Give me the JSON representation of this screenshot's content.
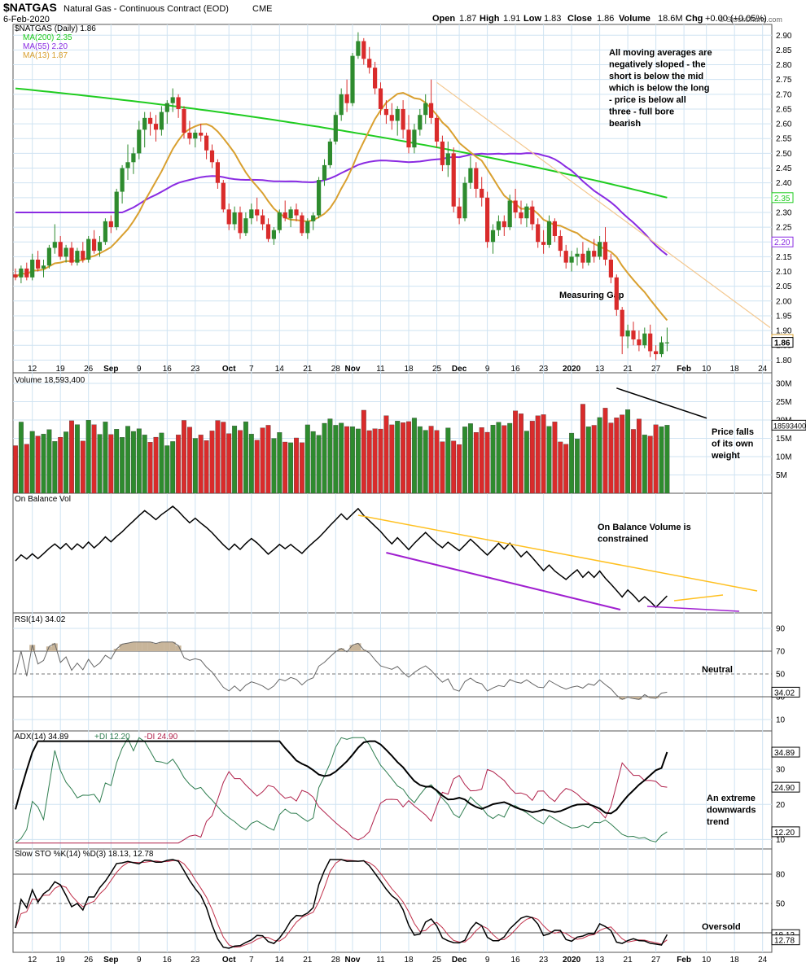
{
  "header": {
    "symbol": "$NATGAS",
    "name": "Natural Gas - Continuous Contract (EOD)",
    "exchange": "CME",
    "date": "6-Feb-2020",
    "open_label": "Open",
    "open": "1.87",
    "high_label": "High",
    "high": "1.91",
    "low_label": "Low",
    "low": "1.83",
    "close_label": "Close",
    "close": "1.86",
    "volume_label": "Volume",
    "volume": "18.6M",
    "chg_label": "Chg",
    "chg": "+0.00 (+0.05%)",
    "watermark": "© StockCharts.com"
  },
  "colors": {
    "up": "#2e8b2e",
    "down": "#d92b2b",
    "ma200": "#20cc20",
    "ma55": "#8a2be2",
    "ma13": "#d9a030",
    "grid": "#cfe3f2",
    "obv_upper": "#ffc020",
    "obv_lower": "#a020d0",
    "rsi_fill": "#c8b59a",
    "adx": "#000000",
    "pdi": "#2e7d4f",
    "mdi": "#b0204a",
    "sto_k": "#000000",
    "sto_d": "#c0304a"
  },
  "x_axis": {
    "ticks": [
      {
        "i": 3,
        "label": "12"
      },
      {
        "i": 8,
        "label": "19"
      },
      {
        "i": 13,
        "label": "26"
      },
      {
        "i": 17,
        "label": "Sep",
        "bold": true
      },
      {
        "i": 22,
        "label": "9"
      },
      {
        "i": 27,
        "label": "16"
      },
      {
        "i": 32,
        "label": "23"
      },
      {
        "i": 38,
        "label": "Oct",
        "bold": true
      },
      {
        "i": 42,
        "label": "7"
      },
      {
        "i": 47,
        "label": "14"
      },
      {
        "i": 52,
        "label": "21"
      },
      {
        "i": 57,
        "label": "28"
      },
      {
        "i": 60,
        "label": "Nov",
        "bold": true
      },
      {
        "i": 65,
        "label": "11"
      },
      {
        "i": 70,
        "label": "18"
      },
      {
        "i": 75,
        "label": "25"
      },
      {
        "i": 79,
        "label": "Dec",
        "bold": true
      },
      {
        "i": 84,
        "label": "9"
      },
      {
        "i": 89,
        "label": "16"
      },
      {
        "i": 94,
        "label": "23"
      },
      {
        "i": 99,
        "label": "2020",
        "bold": true
      },
      {
        "i": 104,
        "label": "13"
      },
      {
        "i": 109,
        "label": "21"
      },
      {
        "i": 114,
        "label": "27"
      },
      {
        "i": 119,
        "label": "Feb",
        "bold": true
      },
      {
        "i": 123,
        "label": "10"
      },
      {
        "i": 128,
        "label": "18"
      },
      {
        "i": 133,
        "label": "24"
      }
    ]
  },
  "price_panel": {
    "legend": [
      {
        "text": "$NATGAS (Daily) 1.86",
        "color": "#000000"
      },
      {
        "text": "MA(200) 2.35",
        "color": "#20cc20"
      },
      {
        "text": "MA(55) 2.20",
        "color": "#8a2be2"
      },
      {
        "text": "MA(13) 1.87",
        "color": "#d9a030"
      }
    ],
    "y_labels": [
      "2.90",
      "2.85",
      "2.80",
      "2.75",
      "2.70",
      "2.65",
      "2.60",
      "2.55",
      "2.50",
      "2.45",
      "2.40",
      "2.35",
      "2.30",
      "2.25",
      "2.20",
      "2.15",
      "2.10",
      "2.05",
      "2.00",
      "1.95",
      "1.90",
      "1.85",
      "1.80"
    ],
    "last_labels": [
      {
        "text": "2.35",
        "value": 2.35,
        "color": "#20cc20"
      },
      {
        "text": "2.20",
        "value": 2.2,
        "color": "#8a2be2"
      },
      {
        "text": "1.87",
        "value": 1.87,
        "color": "#d9a030"
      },
      {
        "text": "1.86",
        "value": 1.86,
        "color": "#000000"
      }
    ],
    "annotation_ma": "All moving averages are negatively sloped - the short is below the mid which is below the long - price is below all three - full bore bearish",
    "annotation_gap": "Measuring Gap"
  },
  "volume_panel": {
    "legend": "Volume 18,593,400",
    "y_labels": [
      "30M",
      "25M",
      "20M",
      "15M",
      "10M",
      "5M"
    ],
    "last_label": "18593400",
    "annotation": "Price falls of its own weight"
  },
  "obv_panel": {
    "legend": "On Balance Vol",
    "annotation": "On Balance Volume is constrained"
  },
  "rsi_panel": {
    "legend": "RSI(14) 34.02",
    "y_labels": [
      "90",
      "70",
      "50",
      "30",
      "10"
    ],
    "last_label": "34.02",
    "annotation": "Neutral"
  },
  "adx_panel": {
    "legend_adx": "ADX(14) 34.89",
    "legend_pdi": "+DI 12.20",
    "legend_mdi": "-DI 24.90",
    "y_labels": [
      "30",
      "20",
      "10"
    ],
    "last_labels": [
      {
        "text": "34.89",
        "value": 34.89
      },
      {
        "text": "24.90",
        "value": 24.9
      },
      {
        "text": "12.20",
        "value": 12.2
      }
    ],
    "annotation": "An extreme downwards trend"
  },
  "sto_panel": {
    "legend": "Slow STO %K(14) %D(3) 18.13, 12.78",
    "y_labels": [
      "80",
      "50",
      "20"
    ],
    "last_labels": [
      {
        "text": "18.13",
        "value": 18.13
      },
      {
        "text": "12.78",
        "value": 12.78
      }
    ],
    "annotation": "Oversold"
  },
  "chart_data": {
    "type": "candlestick",
    "title": "$NATGAS (Daily)",
    "candles_ohlc_approx": [
      [
        2.09,
        2.11,
        2.07,
        2.08
      ],
      [
        2.08,
        2.12,
        2.06,
        2.11
      ],
      [
        2.11,
        2.13,
        2.07,
        2.08
      ],
      [
        2.08,
        2.16,
        2.07,
        2.14
      ],
      [
        2.14,
        2.17,
        2.1,
        2.11
      ],
      [
        2.11,
        2.14,
        2.08,
        2.12
      ],
      [
        2.12,
        2.19,
        2.11,
        2.18
      ],
      [
        2.18,
        2.26,
        2.16,
        2.2
      ],
      [
        2.2,
        2.22,
        2.14,
        2.15
      ],
      [
        2.15,
        2.19,
        2.13,
        2.18
      ],
      [
        2.18,
        2.2,
        2.12,
        2.13
      ],
      [
        2.13,
        2.18,
        2.12,
        2.17
      ],
      [
        2.17,
        2.2,
        2.13,
        2.14
      ],
      [
        2.14,
        2.22,
        2.13,
        2.21
      ],
      [
        2.21,
        2.24,
        2.16,
        2.17
      ],
      [
        2.17,
        2.22,
        2.15,
        2.2
      ],
      [
        2.2,
        2.28,
        2.19,
        2.27
      ],
      [
        2.27,
        2.29,
        2.23,
        2.25
      ],
      [
        2.25,
        2.38,
        2.24,
        2.37
      ],
      [
        2.37,
        2.46,
        2.33,
        2.45
      ],
      [
        2.45,
        2.53,
        2.41,
        2.47
      ],
      [
        2.47,
        2.52,
        2.43,
        2.5
      ],
      [
        2.5,
        2.61,
        2.48,
        2.58
      ],
      [
        2.58,
        2.64,
        2.52,
        2.62
      ],
      [
        2.62,
        2.64,
        2.56,
        2.6
      ],
      [
        2.6,
        2.63,
        2.54,
        2.58
      ],
      [
        2.58,
        2.66,
        2.56,
        2.64
      ],
      [
        2.64,
        2.68,
        2.6,
        2.67
      ],
      [
        2.67,
        2.72,
        2.64,
        2.69
      ],
      [
        2.69,
        2.7,
        2.62,
        2.65
      ],
      [
        2.65,
        2.66,
        2.55,
        2.57
      ],
      [
        2.57,
        2.61,
        2.53,
        2.55
      ],
      [
        2.55,
        2.58,
        2.52,
        2.57
      ],
      [
        2.57,
        2.6,
        2.54,
        2.56
      ],
      [
        2.56,
        2.57,
        2.48,
        2.51
      ],
      [
        2.51,
        2.53,
        2.45,
        2.47
      ],
      [
        2.47,
        2.48,
        2.38,
        2.4
      ],
      [
        2.4,
        2.41,
        2.3,
        2.31
      ],
      [
        2.31,
        2.33,
        2.24,
        2.26
      ],
      [
        2.26,
        2.32,
        2.24,
        2.3
      ],
      [
        2.3,
        2.32,
        2.21,
        2.23
      ],
      [
        2.23,
        2.3,
        2.22,
        2.28
      ],
      [
        2.28,
        2.33,
        2.26,
        2.31
      ],
      [
        2.31,
        2.35,
        2.27,
        2.29
      ],
      [
        2.29,
        2.31,
        2.24,
        2.26
      ],
      [
        2.26,
        2.28,
        2.2,
        2.21
      ],
      [
        2.21,
        2.25,
        2.19,
        2.24
      ],
      [
        2.24,
        2.31,
        2.23,
        2.3
      ],
      [
        2.3,
        2.34,
        2.27,
        2.28
      ],
      [
        2.28,
        2.32,
        2.25,
        2.31
      ],
      [
        2.31,
        2.33,
        2.27,
        2.29
      ],
      [
        2.29,
        2.3,
        2.22,
        2.23
      ],
      [
        2.23,
        2.28,
        2.21,
        2.27
      ],
      [
        2.27,
        2.3,
        2.24,
        2.29
      ],
      [
        2.29,
        2.42,
        2.28,
        2.41
      ],
      [
        2.41,
        2.48,
        2.39,
        2.46
      ],
      [
        2.46,
        2.55,
        2.45,
        2.54
      ],
      [
        2.54,
        2.64,
        2.53,
        2.63
      ],
      [
        2.63,
        2.72,
        2.61,
        2.7
      ],
      [
        2.7,
        2.75,
        2.64,
        2.67
      ],
      [
        2.67,
        2.84,
        2.66,
        2.83
      ],
      [
        2.83,
        2.91,
        2.82,
        2.88
      ],
      [
        2.88,
        2.89,
        2.8,
        2.82
      ],
      [
        2.82,
        2.86,
        2.77,
        2.79
      ],
      [
        2.79,
        2.81,
        2.7,
        2.72
      ],
      [
        2.72,
        2.74,
        2.63,
        2.65
      ],
      [
        2.65,
        2.68,
        2.6,
        2.63
      ],
      [
        2.63,
        2.67,
        2.58,
        2.61
      ],
      [
        2.61,
        2.66,
        2.56,
        2.65
      ],
      [
        2.65,
        2.68,
        2.55,
        2.58
      ],
      [
        2.58,
        2.63,
        2.5,
        2.52
      ],
      [
        2.52,
        2.6,
        2.5,
        2.58
      ],
      [
        2.58,
        2.65,
        2.56,
        2.63
      ],
      [
        2.63,
        2.7,
        2.6,
        2.67
      ],
      [
        2.67,
        2.75,
        2.6,
        2.62
      ],
      [
        2.62,
        2.63,
        2.52,
        2.54
      ],
      [
        2.54,
        2.56,
        2.44,
        2.46
      ],
      [
        2.46,
        2.54,
        2.42,
        2.5
      ],
      [
        2.5,
        2.52,
        2.3,
        2.32
      ],
      [
        2.32,
        2.35,
        2.26,
        2.28
      ],
      [
        2.28,
        2.42,
        2.27,
        2.4
      ],
      [
        2.4,
        2.49,
        2.38,
        2.45
      ],
      [
        2.45,
        2.47,
        2.35,
        2.38
      ],
      [
        2.38,
        2.42,
        2.32,
        2.35
      ],
      [
        2.35,
        2.37,
        2.18,
        2.2
      ],
      [
        2.2,
        2.26,
        2.16,
        2.24
      ],
      [
        2.24,
        2.29,
        2.22,
        2.27
      ],
      [
        2.27,
        2.29,
        2.22,
        2.25
      ],
      [
        2.25,
        2.36,
        2.24,
        2.34
      ],
      [
        2.34,
        2.38,
        2.28,
        2.3
      ],
      [
        2.3,
        2.34,
        2.26,
        2.28
      ],
      [
        2.28,
        2.33,
        2.25,
        2.32
      ],
      [
        2.32,
        2.34,
        2.24,
        2.26
      ],
      [
        2.26,
        2.28,
        2.18,
        2.2
      ],
      [
        2.2,
        2.24,
        2.16,
        2.19
      ],
      [
        2.19,
        2.29,
        2.18,
        2.27
      ],
      [
        2.27,
        2.28,
        2.2,
        2.22
      ],
      [
        2.22,
        2.24,
        2.15,
        2.17
      ],
      [
        2.17,
        2.19,
        2.11,
        2.13
      ],
      [
        2.13,
        2.17,
        2.1,
        2.15
      ],
      [
        2.15,
        2.18,
        2.12,
        2.16
      ],
      [
        2.16,
        2.2,
        2.11,
        2.13
      ],
      [
        2.13,
        2.18,
        2.12,
        2.17
      ],
      [
        2.17,
        2.21,
        2.13,
        2.15
      ],
      [
        2.15,
        2.22,
        2.14,
        2.2
      ],
      [
        2.2,
        2.25,
        2.12,
        2.14
      ],
      [
        2.14,
        2.16,
        2.06,
        2.08
      ],
      [
        2.08,
        2.09,
        1.95,
        1.97
      ],
      [
        1.97,
        1.98,
        1.82,
        1.88
      ],
      [
        1.88,
        1.92,
        1.84,
        1.9
      ],
      [
        1.9,
        1.93,
        1.85,
        1.87
      ],
      [
        1.87,
        1.9,
        1.83,
        1.85
      ],
      [
        1.85,
        1.91,
        1.84,
        1.89
      ],
      [
        1.89,
        1.92,
        1.81,
        1.83
      ],
      [
        1.83,
        1.85,
        1.8,
        1.82
      ],
      [
        1.82,
        1.88,
        1.81,
        1.86
      ],
      [
        1.86,
        1.91,
        1.83,
        1.86
      ]
    ],
    "moving_averages": {
      "MA(200)": 2.35,
      "MA(55)": 2.2,
      "MA(13)": 1.87
    },
    "price_ylim": [
      1.79,
      2.92
    ],
    "volume_ylim_millions": [
      0,
      32
    ],
    "rsi_ylim": [
      0,
      100
    ],
    "adx_ylim": [
      8,
      40
    ],
    "sto_ylim": [
      0,
      100
    ],
    "last_values": {
      "close": 1.86,
      "volume": 18593400,
      "rsi": 34.02,
      "adx": 34.89,
      "plus_di": 12.2,
      "minus_di": 24.9,
      "sto_k": 18.13,
      "sto_d": 12.78
    }
  }
}
